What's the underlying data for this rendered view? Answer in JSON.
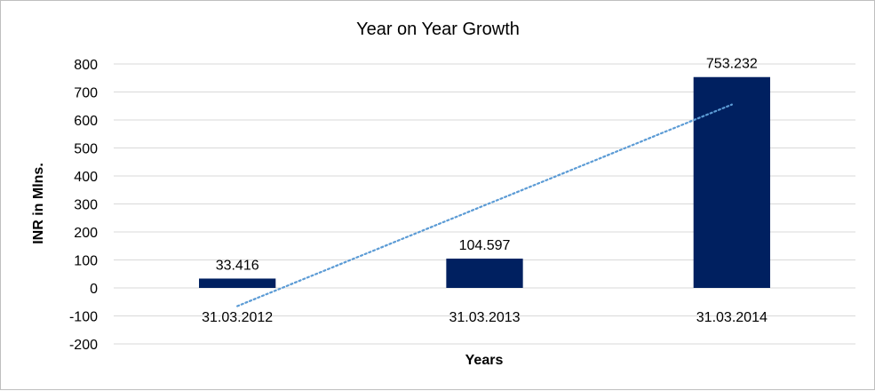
{
  "chart_data": {
    "type": "bar",
    "title": "Year on Year Growth",
    "xlabel": "Years",
    "ylabel": "INR in Mlns.",
    "categories": [
      "31.03.2012",
      "31.03.2013",
      "31.03.2014"
    ],
    "values": [
      33.416,
      104.597,
      753.232
    ],
    "data_labels": [
      "33.416",
      "104.597",
      "753.232"
    ],
    "ylim": [
      -200,
      800
    ],
    "yticks": [
      "800",
      "700",
      "600",
      "500",
      "400",
      "300",
      "200",
      "100",
      "0",
      "-100",
      "-200"
    ],
    "ytick_values": [
      800,
      700,
      600,
      500,
      400,
      300,
      200,
      100,
      0,
      -100,
      -200
    ],
    "grid": true,
    "legend": "none",
    "trendline": {
      "type": "linear",
      "style": "dotted",
      "start_value": -65,
      "end_value": 655
    },
    "colors": {
      "bar": "#002060",
      "trendline": "#5b9bd5",
      "grid": "#d9d9d9",
      "border": "#bfbfbf"
    }
  }
}
